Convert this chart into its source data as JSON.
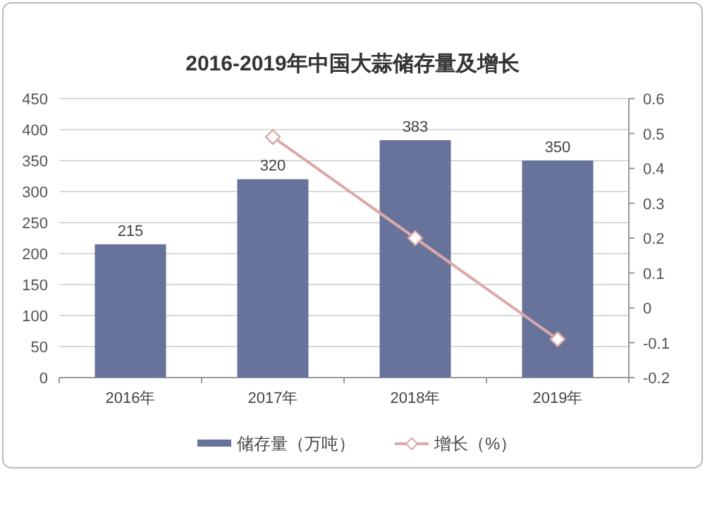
{
  "chart_data": {
    "type": "bar",
    "title": "2016-2019年中国大蒜储存量及增长",
    "categories": [
      "2016年",
      "2017年",
      "2018年",
      "2019年"
    ],
    "series": [
      {
        "name": "储存量（万吨）",
        "color": "#67739a",
        "values": [
          215,
          320,
          383,
          350
        ],
        "value_labels": [
          "215",
          "320",
          "383",
          "350"
        ]
      },
      {
        "name": "增长（%）",
        "type": "line",
        "axis": "y2",
        "color": "#dba9a9",
        "marker": "diamond",
        "values": [
          null,
          0.49,
          0.2,
          -0.09
        ]
      }
    ],
    "ylim": [
      0,
      450
    ],
    "yticks": [
      0,
      50,
      100,
      150,
      200,
      250,
      300,
      350,
      400,
      450
    ],
    "y2lim": [
      -0.2,
      0.6
    ],
    "y2ticks": [
      -0.2,
      -0.1,
      0,
      0.1,
      0.2,
      0.3,
      0.4,
      0.5,
      0.6
    ],
    "grid": "y",
    "legend": "bottom"
  }
}
